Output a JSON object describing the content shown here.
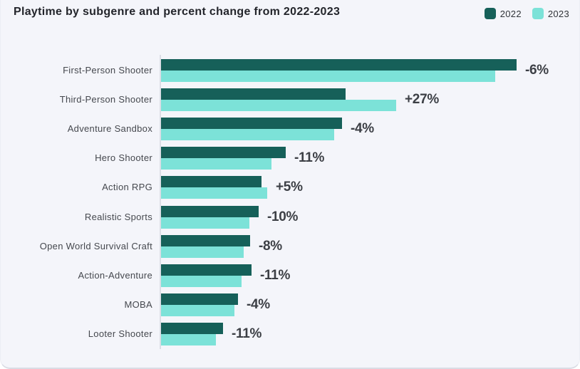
{
  "title": "Playtime by subgenre and percent change from 2022-2023",
  "legend": {
    "items": [
      {
        "label": "2022",
        "color": "#166059"
      },
      {
        "label": "2023",
        "color": "#7ce2d8"
      }
    ]
  },
  "chart_data": {
    "type": "bar",
    "orientation": "horizontal",
    "title": "Playtime by subgenre and percent change from 2022-2023",
    "categories": [
      "First-Person Shooter",
      "Third-Person Shooter",
      "Adventure Sandbox",
      "Hero Shooter",
      "Action RPG",
      "Realistic Sports",
      "Open World Survival Craft",
      "Action-Adventure",
      "MOBA",
      "Looter Shooter"
    ],
    "series": [
      {
        "name": "2022",
        "color": "#166059",
        "values": [
          100,
          52,
          51,
          35,
          28.3,
          27.5,
          25.1,
          25.4,
          21.6,
          17.4
        ]
      },
      {
        "name": "2023",
        "color": "#7ce2d8",
        "values": [
          94,
          66.2,
          48.6,
          31.1,
          29.8,
          24.9,
          23.3,
          22.7,
          20.7,
          15.4
        ]
      }
    ],
    "change_labels": [
      "-6%",
      "+27%",
      "-4%",
      "-11%",
      "+5%",
      "-10%",
      "-8%",
      "-11%",
      "-4%",
      "-11%"
    ],
    "value_axis": {
      "visible": false,
      "note": "no value axis shown; values are relative units estimated from bar lengths, 2022 First-Person Shooter = 100"
    },
    "legend_position": "top-right",
    "grid": false
  },
  "colors": {
    "background": "#f4f5fa",
    "series_2022": "#166059",
    "series_2023": "#7ce2d8",
    "axis_line": "#dcdee6",
    "title_text": "#23252b",
    "category_text": "#45484e",
    "pct_text": "#3c3f45"
  }
}
